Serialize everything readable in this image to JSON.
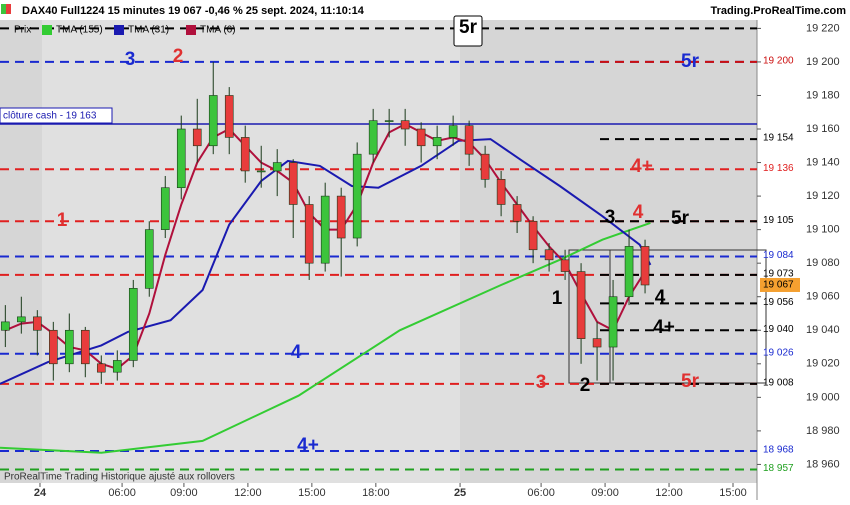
{
  "chart_data": {
    "type": "candlestick",
    "title": "DAX40 Full1224 15 minutes 19 067 -0,46 % 25 sept. 2024, 11:10:14",
    "source": "Trading.ProRealTime.com",
    "footer": "ProRealTime Trading Historique ajusté aux rollovers",
    "price_name": "Prix",
    "up_color": "#3cc43c",
    "down_color": "#e83c3c",
    "ylim": [
      18950,
      19225
    ],
    "yticks": [
      {
        "value": 18960,
        "label": "18 960"
      },
      {
        "value": 18980,
        "label": "18 980"
      },
      {
        "value": 19000,
        "label": "19 000"
      },
      {
        "value": 19020,
        "label": "19 020"
      },
      {
        "value": 19040,
        "label": "19 040"
      },
      {
        "value": 19060,
        "label": "19 060"
      },
      {
        "value": 19080,
        "label": "19 080"
      },
      {
        "value": 19100,
        "label": "19 100"
      },
      {
        "value": 19120,
        "label": "19 120"
      },
      {
        "value": 19140,
        "label": "19 140"
      },
      {
        "value": 19160,
        "label": "19 160"
      },
      {
        "value": 19180,
        "label": "19 180"
      },
      {
        "value": 19200,
        "label": "19 200"
      },
      {
        "value": 19220,
        "label": "19 220"
      }
    ],
    "xlim": [
      0,
      142
    ],
    "xticks": [
      {
        "value": 7.5,
        "label": "24"
      },
      {
        "value": 22.9,
        "label": "06:00"
      },
      {
        "value": 34.5,
        "label": "09:00"
      },
      {
        "value": 46.5,
        "label": "12:00"
      },
      {
        "value": 58.5,
        "label": "15:00"
      },
      {
        "value": 70.5,
        "label": "18:00"
      },
      {
        "value": 86.3,
        "label": "25"
      },
      {
        "value": 101.5,
        "label": "06:00"
      },
      {
        "value": 113.5,
        "label": "09:00"
      },
      {
        "value": 125.5,
        "label": "12:00"
      },
      {
        "value": 137.5,
        "label": "15:00"
      }
    ],
    "x": [
      1,
      4,
      7,
      10,
      13,
      16,
      19,
      22,
      25,
      28,
      31,
      34,
      37,
      40,
      43,
      46,
      49,
      52,
      55,
      58,
      61,
      64,
      67,
      70,
      73,
      76,
      79,
      82,
      85,
      88,
      91,
      94,
      97,
      100,
      103,
      106,
      109,
      112,
      115,
      118,
      121
    ],
    "ohlc": [
      [
        19040,
        19055,
        19030,
        19045
      ],
      [
        19045,
        19060,
        19038,
        19048
      ],
      [
        19048,
        19052,
        19025,
        19040
      ],
      [
        19040,
        19045,
        19010,
        19020
      ],
      [
        19020,
        19050,
        19015,
        19040
      ],
      [
        19040,
        19042,
        19012,
        19020
      ],
      [
        19020,
        19025,
        19008,
        19015
      ],
      [
        19015,
        19028,
        19010,
        19022
      ],
      [
        19022,
        19070,
        19018,
        19065
      ],
      [
        19065,
        19105,
        19060,
        19100
      ],
      [
        19100,
        19132,
        19095,
        19125
      ],
      [
        19125,
        19168,
        19118,
        19160
      ],
      [
        19160,
        19178,
        19140,
        19150
      ],
      [
        19150,
        19200,
        19145,
        19180
      ],
      [
        19180,
        19185,
        19145,
        19155
      ],
      [
        19155,
        19162,
        19128,
        19135
      ],
      [
        19135,
        19150,
        19125,
        19135
      ],
      [
        19135,
        19148,
        19120,
        19140
      ],
      [
        19140,
        19142,
        19095,
        19115
      ],
      [
        19115,
        19120,
        19070,
        19080
      ],
      [
        19080,
        19128,
        19075,
        19120
      ],
      [
        19120,
        19125,
        19072,
        19095
      ],
      [
        19095,
        19152,
        19090,
        19145
      ],
      [
        19145,
        19172,
        19140,
        19165
      ],
      [
        19165,
        19172,
        19155,
        19165
      ],
      [
        19165,
        19172,
        19150,
        19160
      ],
      [
        19160,
        19164,
        19140,
        19150
      ],
      [
        19150,
        19162,
        19142,
        19155
      ],
      [
        19155,
        19168,
        19150,
        19162
      ],
      [
        19162,
        19165,
        19138,
        19145
      ],
      [
        19145,
        19150,
        19125,
        19130
      ],
      [
        19130,
        19135,
        19108,
        19115
      ],
      [
        19115,
        19120,
        19098,
        19105
      ],
      [
        19105,
        19108,
        19080,
        19088
      ],
      [
        19088,
        19092,
        19075,
        19082
      ],
      [
        19082,
        19088,
        19070,
        19075
      ],
      [
        19075,
        19080,
        19020,
        19035
      ],
      [
        19035,
        19045,
        19010,
        19030
      ],
      [
        19030,
        19070,
        19010,
        19060
      ],
      [
        19060,
        19100,
        19055,
        19090
      ],
      [
        19090,
        19094,
        19062,
        19067
      ]
    ],
    "series": [
      {
        "name": "TMA (155)",
        "color": "#33cc33",
        "x": [
          0,
          19,
          38,
          56,
          75,
          94,
          105,
          113,
          122
        ],
        "values": [
          18970,
          18967,
          18974,
          19001,
          19040,
          19067,
          19082,
          19094,
          19104
        ]
      },
      {
        "name": "TMA (31)",
        "color": "#1a1ab0",
        "x": [
          0,
          9,
          19,
          24,
          32,
          38,
          43,
          49,
          54,
          60,
          66,
          71,
          79,
          86,
          92,
          98,
          105,
          113,
          120,
          122
        ],
        "values": [
          19008,
          19021,
          19031,
          19039,
          19046,
          19064,
          19103,
          19129,
          19141,
          19138,
          19126,
          19125,
          19138,
          19153,
          19154,
          19141,
          19126,
          19108,
          19091,
          19079
        ]
      },
      {
        "name": "TMA (6)",
        "color": "#b0103c",
        "x": [
          1,
          4,
          7,
          10,
          13,
          16,
          19,
          22,
          25,
          28,
          31,
          34,
          37,
          40,
          43,
          46,
          49,
          52,
          55,
          58,
          61,
          64,
          67,
          70,
          73,
          76,
          79,
          82,
          85,
          88,
          91,
          94,
          97,
          100,
          103,
          106,
          109,
          112,
          115,
          118,
          121
        ],
        "values": [
          19040,
          19044,
          19045,
          19038,
          19030,
          19028,
          19020,
          19017,
          19025,
          19050,
          19085,
          19115,
          19140,
          19155,
          19160,
          19150,
          19140,
          19135,
          19128,
          19110,
          19100,
          19100,
          19115,
          19140,
          19158,
          19163,
          19158,
          19153,
          19155,
          19152,
          19142,
          19128,
          19115,
          19102,
          19090,
          19080,
          19062,
          19045,
          19040,
          19060,
          19075
        ]
      }
    ],
    "levels": [
      {
        "value": 19220,
        "color": "#000000",
        "extent": "full"
      },
      {
        "value": 19200,
        "color": "#1a2ad0",
        "extent": "full"
      },
      {
        "value": 19200,
        "color": "#cc1010",
        "extent": "right",
        "label": "19 200"
      },
      {
        "value": 19163,
        "color": "#1a1ab0",
        "extent": "full",
        "style": "solid"
      },
      {
        "value": 19154,
        "color": "#000000",
        "extent": "right",
        "label": "19 154"
      },
      {
        "value": 19136,
        "color": "#e02020",
        "extent": "full",
        "label": "19 136"
      },
      {
        "value": 19105,
        "color": "#e02020",
        "extent": "full"
      },
      {
        "value": 19105,
        "color": "#000000",
        "extent": "right",
        "label": "19 105"
      },
      {
        "value": 19084,
        "color": "#1a2ad0",
        "extent": "full",
        "label": "19 084"
      },
      {
        "value": 19073,
        "color": "#e02020",
        "extent": "full"
      },
      {
        "value": 19073,
        "color": "#000000",
        "extent": "right",
        "label": "19 073"
      },
      {
        "value": 19056,
        "color": "#000000",
        "extent": "right",
        "label": "19 056"
      },
      {
        "value": 19040,
        "color": "#000000",
        "extent": "right",
        "label": "19 040"
      },
      {
        "value": 19026,
        "color": "#1a2ad0",
        "extent": "full",
        "label": "19 026"
      },
      {
        "value": 19008,
        "color": "#e02020",
        "extent": "full"
      },
      {
        "value": 19008,
        "color": "#000000",
        "extent": "right",
        "label": "19 008"
      },
      {
        "value": 18968,
        "color": "#1a2ad0",
        "extent": "full",
        "label": "18 968"
      },
      {
        "value": 18957,
        "color": "#20a020",
        "extent": "full",
        "label": "18 957"
      }
    ],
    "cloture": "clôture cash -  19 163",
    "last": {
      "value": 19067,
      "label": "19 067"
    },
    "annotations": [
      {
        "text": "3",
        "color": "#1a2ad0"
      },
      {
        "text": "2",
        "color": "#e03030"
      },
      {
        "text": "5r",
        "color": "#1a2ad0"
      },
      {
        "text": "5r",
        "color": "#000000"
      },
      {
        "text": "4+",
        "color": "#e03030"
      },
      {
        "text": "1",
        "color": "#e03030"
      },
      {
        "text": "3",
        "color": "#000000"
      },
      {
        "text": "4",
        "color": "#e03030"
      },
      {
        "text": "5r",
        "color": "#000000"
      },
      {
        "text": "1",
        "color": "#000000"
      },
      {
        "text": "4",
        "color": "#000000"
      },
      {
        "text": "4+",
        "color": "#000000"
      },
      {
        "text": "4",
        "color": "#1a2ad0"
      },
      {
        "text": "3",
        "color": "#e03030"
      },
      {
        "text": "2",
        "color": "#000000"
      },
      {
        "text": "5r",
        "color": "#e03030"
      },
      {
        "text": "4+",
        "color": "#1a2ad0"
      }
    ]
  }
}
